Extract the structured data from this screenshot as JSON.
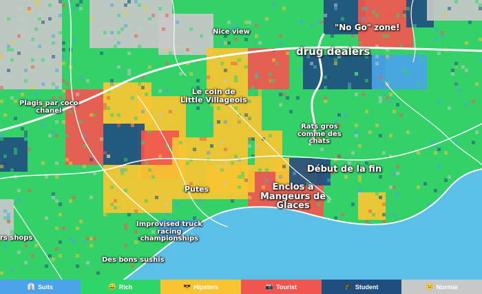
{
  "colors": {
    "suits": "#4aa3e8",
    "rich": "#2fd66a",
    "hipsters": "#f9c432",
    "tourist": "#f2554f",
    "student": "#1f4f7f",
    "normie": "#c8c8c8",
    "sea": "#5cbfe8"
  },
  "labels": [
    {
      "id": "nice-view",
      "text": "Nice view"
    },
    {
      "id": "no-go-zone",
      "text": "\"No Go\" zone!"
    },
    {
      "id": "drug-dealers",
      "text": "drug dealers"
    },
    {
      "id": "le-coin",
      "text": "Le coin de\nLittle Villageois"
    },
    {
      "id": "plagis",
      "text": "Plagis par coco\nchanel"
    },
    {
      "id": "rats-gros",
      "text": "Rats gros\ncomme des\nchats"
    },
    {
      "id": "debut",
      "text": "Début de la fin"
    },
    {
      "id": "putes",
      "text": "Putes"
    },
    {
      "id": "enclos",
      "text": "Enclos à\nMangeurs de\nGlaces"
    },
    {
      "id": "improvised",
      "text": "Improvised truck\nracing\nchampionships"
    },
    {
      "id": "rs-shops",
      "text": "rs shops"
    },
    {
      "id": "sushis",
      "text": "Des bons sushis"
    }
  ],
  "legend": [
    {
      "key": "suits",
      "icon": "👔",
      "label": "Suits"
    },
    {
      "key": "rich",
      "icon": "😀",
      "label": "Rich"
    },
    {
      "key": "hipsters",
      "icon": "😎",
      "label": "Hipsters"
    },
    {
      "key": "tourist",
      "icon": "📷",
      "label": "Tourist"
    },
    {
      "key": "student",
      "icon": "🎓",
      "label": "Student"
    },
    {
      "key": "normie",
      "icon": "😐",
      "label": "Normie"
    }
  ]
}
